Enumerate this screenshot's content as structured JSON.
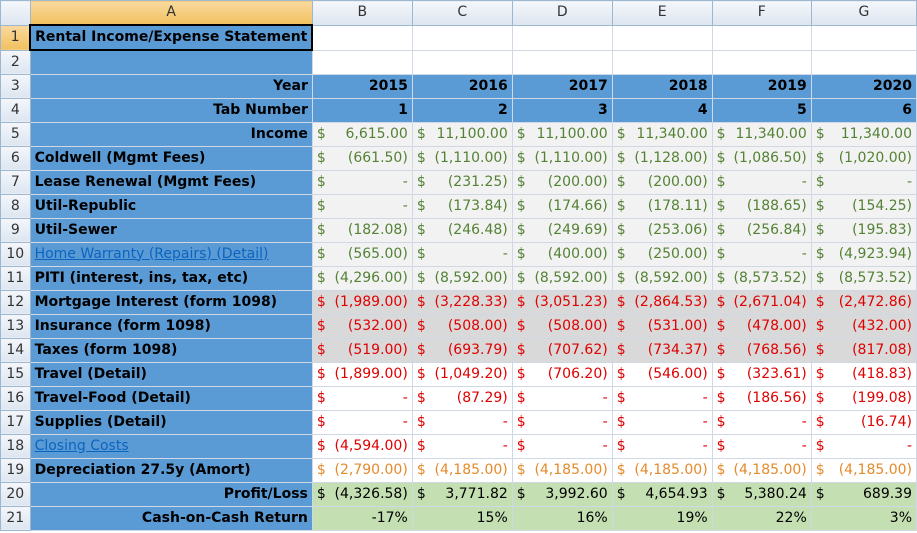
{
  "columns": [
    "A",
    "B",
    "C",
    "D",
    "E",
    "F",
    "G"
  ],
  "title": "Rental Income/Expense Statement",
  "header": {
    "year_label": "Year",
    "years": [
      "2015",
      "2016",
      "2017",
      "2018",
      "2019",
      "2020"
    ],
    "tab_label": "Tab Number",
    "tabs": [
      "1",
      "2",
      "3",
      "4",
      "5",
      "6"
    ]
  },
  "rows": [
    {
      "label": "Income",
      "align": "right",
      "bg": "grey",
      "color": "green",
      "values": [
        "6,615.00",
        "$11,100.00",
        "$11,100.00",
        "$11,340.00",
        "$11,340.00",
        "$11,340.00"
      ],
      "sym": [
        "$",
        "",
        "",
        "",
        "",
        ""
      ]
    },
    {
      "label": "Coldwell (Mgmt Fees)",
      "bg": "grey",
      "color": "green",
      "values": [
        "(661.50)",
        "(1,110.00)",
        "(1,110.00)",
        "(1,128.00)",
        "(1,086.50)",
        "(1,020.00)"
      ]
    },
    {
      "label": "Lease Renewal (Mgmt Fees)",
      "bg": "grey",
      "color": "green",
      "values": [
        "-",
        "(231.25)",
        "(200.00)",
        "(200.00)",
        "-",
        "-"
      ]
    },
    {
      "label": "Util-Republic",
      "bg": "grey",
      "color": "green",
      "values": [
        "-",
        "(173.84)",
        "(174.66)",
        "(178.11)",
        "(188.65)",
        "(154.25)"
      ]
    },
    {
      "label": "Util-Sewer",
      "bg": "grey",
      "color": "green",
      "values": [
        "(182.08)",
        "(246.48)",
        "(249.69)",
        "(253.06)",
        "(256.84)",
        "(195.83)"
      ]
    },
    {
      "label": "Home Warranty (Repairs) (Detail)",
      "link": true,
      "bg": "grey",
      "color": "green",
      "values": [
        "(565.00)",
        "-",
        "(400.00)",
        "(250.00)",
        "-",
        "(4,923.94)"
      ]
    },
    {
      "label": "PITI (interest, ins, tax, etc)",
      "bg": "grey",
      "color": "green",
      "values": [
        "(4,296.00)",
        "(8,592.00)",
        "(8,592.00)",
        "(8,592.00)",
        "(8,573.52)",
        "(8,573.52)"
      ]
    },
    {
      "label": "Mortgage Interest (form 1098)",
      "bg": "dark",
      "color": "red",
      "values": [
        "(1,989.00)",
        "(3,228.33)",
        "(3,051.23)",
        "(2,864.53)",
        "(2,671.04)",
        "(2,472.86)"
      ]
    },
    {
      "label": "Insurance (form 1098)",
      "bg": "dark",
      "color": "red",
      "values": [
        "(532.00)",
        "(508.00)",
        "(508.00)",
        "(531.00)",
        "(478.00)",
        "(432.00)"
      ]
    },
    {
      "label": "Taxes (form 1098)",
      "bg": "dark",
      "color": "red",
      "values": [
        "(519.00)",
        "(693.79)",
        "(707.62)",
        "(734.37)",
        "(768.56)",
        "(817.08)"
      ]
    },
    {
      "label": "Travel (Detail)",
      "bg": "white",
      "color": "red",
      "values": [
        "(1,899.00)",
        "(1,049.20)",
        "(706.20)",
        "(546.00)",
        "(323.61)",
        "(418.83)"
      ]
    },
    {
      "label": "Travel-Food (Detail)",
      "bg": "white",
      "color": "red",
      "values": [
        "-",
        "(87.29)",
        "-",
        "-",
        "(186.56)",
        "(199.08)"
      ]
    },
    {
      "label": "Supplies (Detail)",
      "bg": "white",
      "color": "red",
      "values": [
        "-",
        "-",
        "-",
        "-",
        "-",
        "(16.74)"
      ]
    },
    {
      "label": "Closing Costs",
      "link": true,
      "bg": "white",
      "color": "red",
      "values": [
        "(4,594.00)",
        "-",
        "-",
        "-",
        "-",
        "-"
      ]
    },
    {
      "label": "Depreciation 27.5y (Amort)",
      "bg": "white",
      "color": "orange",
      "values": [
        "(2,790.00)",
        "(4,185.00)",
        "(4,185.00)",
        "(4,185.00)",
        "(4,185.00)",
        "(4,185.00)"
      ]
    },
    {
      "label": "Profit/Loss",
      "align": "right",
      "bg": "green",
      "color": "black",
      "values": [
        "(4,326.58)",
        "3,771.82",
        "3,992.60",
        "4,654.93",
        "5,380.24",
        "689.39"
      ]
    },
    {
      "label": "Cash-on-Cash Return",
      "align": "right",
      "bg": "green",
      "color": "black",
      "pct": true,
      "values": [
        "-17%",
        "15%",
        "16%",
        "19%",
        "22%",
        "3%"
      ]
    }
  ],
  "dollar_sign": "$"
}
